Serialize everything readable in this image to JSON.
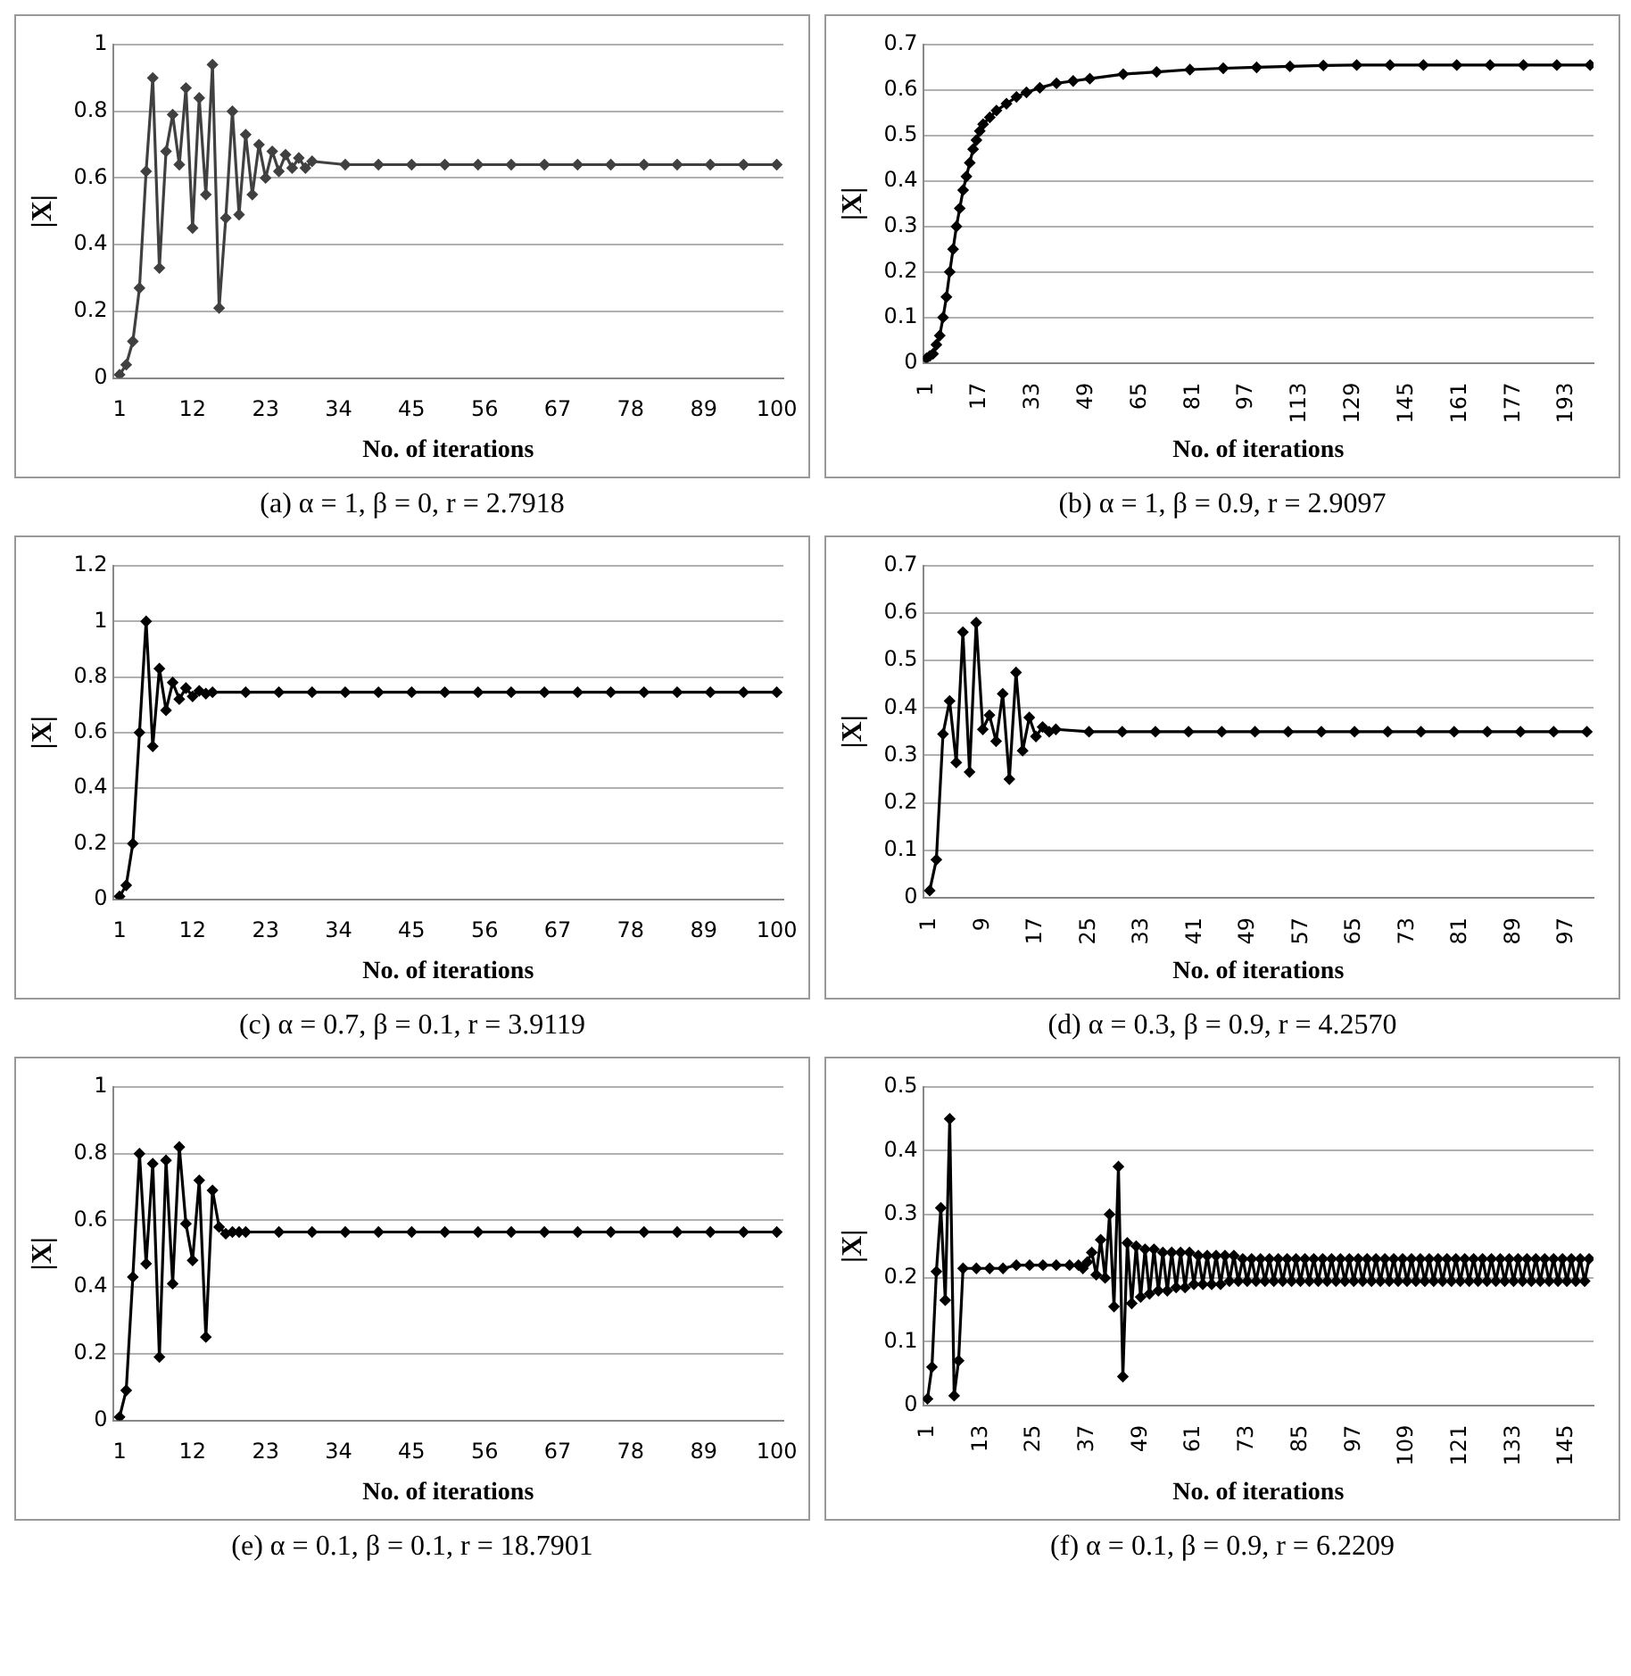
{
  "chart_data": [
    {
      "type": "line",
      "title": "(a) α = 1, β = 0, r = 2.7918",
      "xlabel": "No. of iterations",
      "ylabel": "|X|",
      "color": "#404040",
      "marker": "diamond",
      "grid": "y",
      "xlim": [
        0,
        101
      ],
      "xticks": [
        1,
        12,
        23,
        34,
        45,
        56,
        67,
        78,
        89,
        100
      ],
      "ylim": [
        0,
        1
      ],
      "yticks": [
        0,
        0.2,
        0.4,
        0.6,
        0.8,
        1
      ],
      "x": [
        1,
        2,
        3,
        4,
        5,
        6,
        7,
        8,
        9,
        10,
        11,
        12,
        13,
        14,
        15,
        16,
        17,
        18,
        19,
        20,
        21,
        22,
        23,
        24,
        25,
        26,
        27,
        28,
        29,
        30,
        35,
        40,
        45,
        50,
        55,
        60,
        65,
        70,
        75,
        80,
        85,
        90,
        95,
        100
      ],
      "values": [
        0.01,
        0.04,
        0.11,
        0.27,
        0.62,
        0.9,
        0.33,
        0.68,
        0.79,
        0.64,
        0.87,
        0.45,
        0.84,
        0.55,
        0.94,
        0.21,
        0.48,
        0.8,
        0.49,
        0.73,
        0.55,
        0.7,
        0.6,
        0.68,
        0.62,
        0.67,
        0.63,
        0.66,
        0.63,
        0.65,
        0.64,
        0.64,
        0.64,
        0.64,
        0.64,
        0.64,
        0.64,
        0.64,
        0.64,
        0.64,
        0.64,
        0.64,
        0.64,
        0.64
      ]
    },
    {
      "type": "line",
      "title": "(b) α = 1, β = 0.9, r = 2.9097",
      "xlabel": "No. of iterations",
      "ylabel": "|X|",
      "color": "#000000",
      "marker": "diamond",
      "grid": "y",
      "xlim": [
        0,
        201
      ],
      "xticks": [
        1,
        17,
        33,
        49,
        65,
        81,
        97,
        113,
        129,
        145,
        161,
        177,
        193
      ],
      "ylim": [
        0,
        0.7
      ],
      "yticks": [
        0,
        0.1,
        0.2,
        0.3,
        0.4,
        0.5,
        0.6,
        0.7
      ],
      "x": [
        1,
        2,
        3,
        4,
        5,
        6,
        7,
        8,
        9,
        10,
        11,
        12,
        13,
        14,
        15,
        16,
        17,
        18,
        20,
        22,
        25,
        28,
        31,
        35,
        40,
        45,
        50,
        60,
        70,
        80,
        90,
        100,
        110,
        120,
        130,
        140,
        150,
        160,
        170,
        180,
        190,
        200
      ],
      "values": [
        0.01,
        0.015,
        0.02,
        0.04,
        0.06,
        0.1,
        0.145,
        0.2,
        0.25,
        0.3,
        0.34,
        0.38,
        0.41,
        0.44,
        0.47,
        0.49,
        0.51,
        0.525,
        0.54,
        0.555,
        0.57,
        0.585,
        0.595,
        0.605,
        0.615,
        0.62,
        0.625,
        0.635,
        0.64,
        0.645,
        0.648,
        0.65,
        0.652,
        0.654,
        0.655,
        0.655,
        0.655,
        0.655,
        0.655,
        0.655,
        0.655,
        0.655
      ]
    },
    {
      "type": "line",
      "title": "(c) α = 0.7, β = 0.1, r = 3.9119",
      "xlabel": "No. of iterations",
      "ylabel": "|X|",
      "color": "#000000",
      "marker": "diamond",
      "grid": "y",
      "xlim": [
        0,
        101
      ],
      "xticks": [
        1,
        12,
        23,
        34,
        45,
        56,
        67,
        78,
        89,
        100
      ],
      "ylim": [
        0,
        1.2
      ],
      "yticks": [
        0,
        0.2,
        0.4,
        0.6,
        0.8,
        1,
        1.2
      ],
      "x": [
        1,
        2,
        3,
        4,
        5,
        6,
        7,
        8,
        9,
        10,
        11,
        12,
        13,
        14,
        15,
        20,
        25,
        30,
        35,
        40,
        45,
        50,
        55,
        60,
        65,
        70,
        75,
        80,
        85,
        90,
        95,
        100
      ],
      "values": [
        0.01,
        0.05,
        0.2,
        0.6,
        1.0,
        0.55,
        0.83,
        0.68,
        0.78,
        0.72,
        0.76,
        0.73,
        0.75,
        0.74,
        0.745,
        0.745,
        0.745,
        0.745,
        0.745,
        0.745,
        0.745,
        0.745,
        0.745,
        0.745,
        0.745,
        0.745,
        0.745,
        0.745,
        0.745,
        0.745,
        0.745,
        0.745
      ]
    },
    {
      "type": "line",
      "title": "(d)  α = 0.3, β = 0.9, r = 4.2570",
      "xlabel": "No. of iterations",
      "ylabel": "|X|",
      "color": "#000000",
      "marker": "diamond",
      "grid": "y",
      "xlim": [
        0,
        101
      ],
      "xticks": [
        1,
        9,
        17,
        25,
        33,
        41,
        49,
        57,
        65,
        73,
        81,
        89,
        97
      ],
      "ylim": [
        0,
        0.7
      ],
      "yticks": [
        0,
        0.1,
        0.2,
        0.3,
        0.4,
        0.5,
        0.6,
        0.7
      ],
      "x": [
        1,
        2,
        3,
        4,
        5,
        6,
        7,
        8,
        9,
        10,
        11,
        12,
        13,
        14,
        15,
        16,
        17,
        18,
        19,
        20,
        25,
        30,
        35,
        40,
        45,
        50,
        55,
        60,
        65,
        70,
        75,
        80,
        85,
        90,
        95,
        100
      ],
      "values": [
        0.015,
        0.08,
        0.345,
        0.415,
        0.285,
        0.56,
        0.265,
        0.58,
        0.355,
        0.385,
        0.33,
        0.43,
        0.25,
        0.475,
        0.31,
        0.38,
        0.34,
        0.36,
        0.35,
        0.355,
        0.35,
        0.35,
        0.35,
        0.35,
        0.35,
        0.35,
        0.35,
        0.35,
        0.35,
        0.35,
        0.35,
        0.35,
        0.35,
        0.35,
        0.35,
        0.35
      ]
    },
    {
      "type": "line",
      "title": "(e) α = 0.1, β = 0.1, r = 18.7901",
      "xlabel": "No. of iterations",
      "ylabel": "|X|",
      "color": "#000000",
      "marker": "diamond",
      "grid": "y",
      "xlim": [
        0,
        101
      ],
      "xticks": [
        1,
        12,
        23,
        34,
        45,
        56,
        67,
        78,
        89,
        100
      ],
      "ylim": [
        0,
        1
      ],
      "yticks": [
        0,
        0.2,
        0.4,
        0.6,
        0.8,
        1
      ],
      "x": [
        1,
        2,
        3,
        4,
        5,
        6,
        7,
        8,
        9,
        10,
        11,
        12,
        13,
        14,
        15,
        16,
        17,
        18,
        19,
        20,
        25,
        30,
        35,
        40,
        45,
        50,
        55,
        60,
        65,
        70,
        75,
        80,
        85,
        90,
        95,
        100
      ],
      "values": [
        0.01,
        0.09,
        0.43,
        0.8,
        0.47,
        0.77,
        0.19,
        0.78,
        0.41,
        0.82,
        0.59,
        0.48,
        0.72,
        0.25,
        0.69,
        0.58,
        0.56,
        0.565,
        0.565,
        0.565,
        0.565,
        0.565,
        0.565,
        0.565,
        0.565,
        0.565,
        0.565,
        0.565,
        0.565,
        0.565,
        0.565,
        0.565,
        0.565,
        0.565,
        0.565,
        0.565
      ]
    },
    {
      "type": "line",
      "title": "(f)  α = 0.1, β = 0.9, r = 6.2209",
      "xlabel": "No. of iterations",
      "ylabel": "|X|",
      "color": "#000000",
      "marker": "diamond",
      "grid": "y",
      "xlim": [
        0,
        151
      ],
      "xticks": [
        1,
        13,
        25,
        37,
        49,
        61,
        73,
        85,
        97,
        109,
        121,
        133,
        145
      ],
      "ylim": [
        0,
        0.5
      ],
      "yticks": [
        0,
        0.1,
        0.2,
        0.3,
        0.4,
        0.5
      ],
      "x": [
        1,
        2,
        3,
        4,
        5,
        6,
        7,
        8,
        9,
        12,
        15,
        18,
        21,
        24,
        27,
        30,
        33,
        35,
        36,
        37,
        38,
        39,
        40,
        41,
        42,
        43,
        44,
        45,
        46,
        47,
        48,
        49,
        50,
        51,
        52,
        53,
        54,
        55,
        56,
        57,
        58,
        59,
        60,
        61,
        62,
        63,
        64,
        65,
        66,
        67,
        68,
        69,
        70,
        71,
        72,
        73,
        74,
        75,
        76,
        77,
        78,
        79,
        80,
        81,
        82,
        83,
        84,
        85,
        86,
        87,
        88,
        89,
        90,
        91,
        92,
        93,
        94,
        95,
        96,
        97,
        98,
        99,
        100,
        101,
        102,
        103,
        104,
        105,
        106,
        107,
        108,
        109,
        110,
        111,
        112,
        113,
        114,
        115,
        116,
        117,
        118,
        119,
        120,
        121,
        122,
        123,
        124,
        125,
        126,
        127,
        128,
        129,
        130,
        131,
        132,
        133,
        134,
        135,
        136,
        137,
        138,
        139,
        140,
        141,
        142,
        143,
        144,
        145,
        146,
        147,
        148,
        149,
        150
      ],
      "values": [
        0.01,
        0.06,
        0.21,
        0.31,
        0.165,
        0.45,
        0.015,
        0.07,
        0.215,
        0.215,
        0.215,
        0.215,
        0.22,
        0.22,
        0.22,
        0.22,
        0.22,
        0.22,
        0.215,
        0.225,
        0.24,
        0.205,
        0.26,
        0.2,
        0.3,
        0.155,
        0.375,
        0.045,
        0.255,
        0.16,
        0.25,
        0.17,
        0.245,
        0.175,
        0.245,
        0.18,
        0.24,
        0.18,
        0.24,
        0.185,
        0.24,
        0.185,
        0.24,
        0.19,
        0.235,
        0.19,
        0.235,
        0.19,
        0.235,
        0.19,
        0.235,
        0.195,
        0.235,
        0.195,
        0.23,
        0.195,
        0.23,
        0.195,
        0.23,
        0.195,
        0.23,
        0.195,
        0.23,
        0.195,
        0.23,
        0.195,
        0.23,
        0.195,
        0.23,
        0.195,
        0.23,
        0.195,
        0.23,
        0.195,
        0.23,
        0.195,
        0.23,
        0.195,
        0.23,
        0.195,
        0.23,
        0.195,
        0.23,
        0.195,
        0.23,
        0.195,
        0.23,
        0.195,
        0.23,
        0.195,
        0.23,
        0.195,
        0.23,
        0.195,
        0.23,
        0.195,
        0.23,
        0.195,
        0.23,
        0.195,
        0.23,
        0.195,
        0.23,
        0.195,
        0.23,
        0.195,
        0.23,
        0.195,
        0.23,
        0.195,
        0.23,
        0.195,
        0.23,
        0.195,
        0.23,
        0.195,
        0.23,
        0.195,
        0.23,
        0.195,
        0.23,
        0.195,
        0.23,
        0.195,
        0.23,
        0.195,
        0.23,
        0.195,
        0.23,
        0.195,
        0.23,
        0.195,
        0.23
      ]
    }
  ]
}
